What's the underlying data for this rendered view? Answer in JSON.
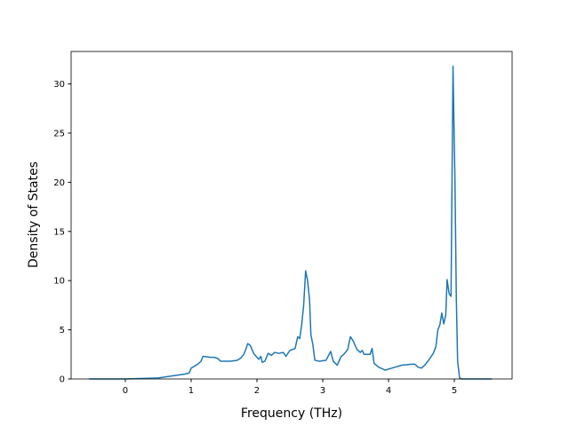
{
  "chart_data": {
    "type": "line",
    "xlabel": "Frequency (THz)",
    "ylabel": "Density of States",
    "x": [
      -0.55,
      0,
      0.5,
      0.9,
      0.97,
      1.0,
      1.1,
      1.15,
      1.18,
      1.3,
      1.35,
      1.4,
      1.45,
      1.6,
      1.7,
      1.75,
      1.8,
      1.83,
      1.86,
      1.9,
      1.95,
      2.0,
      2.03,
      2.06,
      2.08,
      2.12,
      2.17,
      2.22,
      2.27,
      2.33,
      2.4,
      2.44,
      2.5,
      2.58,
      2.62,
      2.65,
      2.68,
      2.71,
      2.74,
      2.77,
      2.8,
      2.82,
      2.85,
      2.88,
      2.95,
      3.05,
      3.12,
      3.16,
      3.22,
      3.28,
      3.32,
      3.38,
      3.42,
      3.46,
      3.52,
      3.57,
      3.6,
      3.63,
      3.72,
      3.75,
      3.78,
      3.85,
      3.95,
      4.1,
      4.2,
      4.35,
      4.4,
      4.45,
      4.5,
      4.55,
      4.62,
      4.68,
      4.72,
      4.75,
      4.78,
      4.81,
      4.84,
      4.87,
      4.89,
      4.92,
      4.95,
      4.98,
      5.01,
      5.03,
      5.05,
      5.08,
      5.12,
      5.57
    ],
    "series": [
      {
        "color": "#1f77b4",
        "values": [
          0,
          0,
          0.1,
          0.5,
          0.6,
          1.1,
          1.5,
          1.8,
          2.3,
          2.2,
          2.2,
          2.1,
          1.8,
          1.8,
          1.9,
          2.1,
          2.5,
          3.0,
          3.6,
          3.4,
          2.6,
          2.2,
          2.0,
          2.3,
          1.7,
          1.8,
          2.6,
          2.4,
          2.7,
          2.6,
          2.7,
          2.3,
          2.9,
          3.1,
          4.3,
          4.1,
          5.5,
          7.5,
          11,
          10,
          8,
          4.5,
          3.5,
          1.9,
          1.8,
          1.9,
          2.8,
          1.8,
          1.4,
          2.3,
          2.5,
          3.0,
          4.3,
          3.9,
          3.0,
          2.7,
          2.9,
          2.5,
          2.5,
          3.1,
          1.6,
          1.2,
          0.9,
          1.2,
          1.4,
          1.5,
          1.5,
          1.2,
          1.1,
          1.4,
          2.0,
          2.6,
          3.3,
          5.0,
          5.5,
          6.7,
          5.6,
          6.5,
          10.1,
          8.7,
          8.4,
          31.8,
          20,
          8.3,
          1.8,
          0.1,
          0,
          0
        ]
      }
    ],
    "xlim": [
      -0.824,
      5.878
    ],
    "xticks": [
      0,
      1,
      2,
      3,
      4,
      5
    ],
    "ylim": [
      0,
      33.3
    ],
    "yticks": [
      0,
      5,
      10,
      15,
      20,
      25,
      30
    ]
  }
}
